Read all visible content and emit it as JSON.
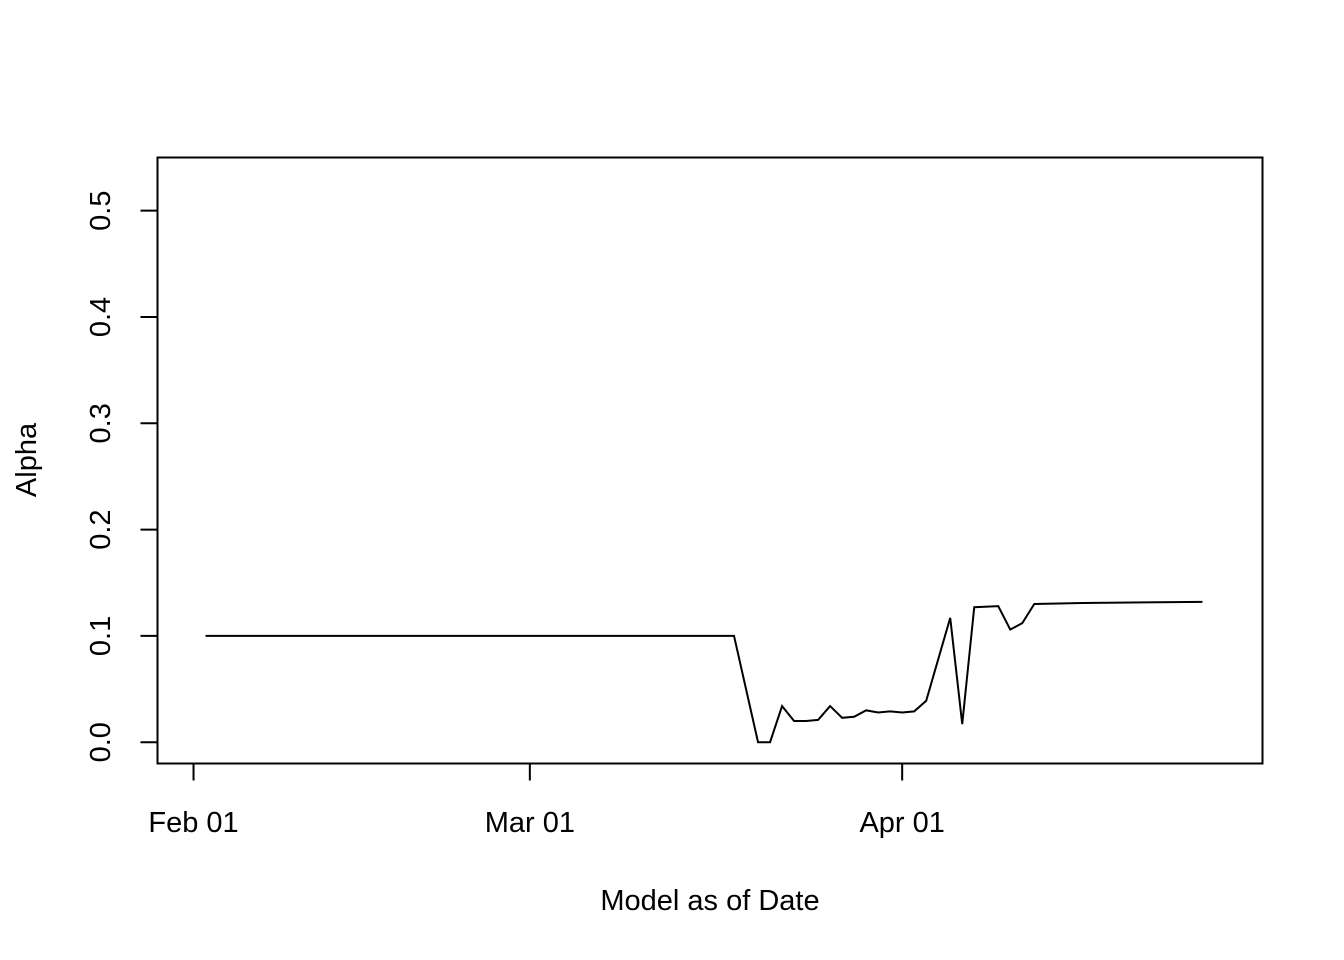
{
  "chart_data": {
    "type": "line",
    "title": "",
    "xlabel": "Model as of Date",
    "ylabel": "Alpha",
    "x_ticks": [
      {
        "date": "2013-02-01",
        "label": "Feb 01"
      },
      {
        "date": "2013-03-01",
        "label": "Mar 01"
      },
      {
        "date": "2013-04-01",
        "label": "Apr 01"
      }
    ],
    "y_ticks": [
      {
        "value": 0.0,
        "label": "0.0"
      },
      {
        "value": 0.1,
        "label": "0.1"
      },
      {
        "value": 0.2,
        "label": "0.2"
      },
      {
        "value": 0.3,
        "label": "0.3"
      },
      {
        "value": 0.4,
        "label": "0.4"
      },
      {
        "value": 0.5,
        "label": "0.5"
      }
    ],
    "xlim": [
      "2013-01-29",
      "2013-05-01"
    ],
    "ylim": [
      -0.02,
      0.55
    ],
    "grid": false,
    "legend": "none",
    "line_color": "#000000",
    "series": [
      {
        "points": [
          {
            "x": "2013-02-02",
            "y": 0.1
          },
          {
            "x": "2013-03-18",
            "y": 0.1
          },
          {
            "x": "2013-03-20",
            "y": 0.0
          },
          {
            "x": "2013-03-21",
            "y": 0.0
          },
          {
            "x": "2013-03-22",
            "y": 0.034
          },
          {
            "x": "2013-03-23",
            "y": 0.02
          },
          {
            "x": "2013-03-24",
            "y": 0.02
          },
          {
            "x": "2013-03-25",
            "y": 0.021
          },
          {
            "x": "2013-03-26",
            "y": 0.034
          },
          {
            "x": "2013-03-27",
            "y": 0.023
          },
          {
            "x": "2013-03-28",
            "y": 0.024
          },
          {
            "x": "2013-03-29",
            "y": 0.03
          },
          {
            "x": "2013-03-30",
            "y": 0.028
          },
          {
            "x": "2013-03-31",
            "y": 0.029
          },
          {
            "x": "2013-04-01",
            "y": 0.028
          },
          {
            "x": "2013-04-02",
            "y": 0.029
          },
          {
            "x": "2013-04-03",
            "y": 0.039
          },
          {
            "x": "2013-04-05",
            "y": 0.117
          },
          {
            "x": "2013-04-06",
            "y": 0.017
          },
          {
            "x": "2013-04-07",
            "y": 0.127
          },
          {
            "x": "2013-04-09",
            "y": 0.128
          },
          {
            "x": "2013-04-10",
            "y": 0.106
          },
          {
            "x": "2013-04-11",
            "y": 0.112
          },
          {
            "x": "2013-04-12",
            "y": 0.13
          },
          {
            "x": "2013-04-16",
            "y": 0.131
          },
          {
            "x": "2013-04-26",
            "y": 0.132
          }
        ]
      }
    ]
  }
}
